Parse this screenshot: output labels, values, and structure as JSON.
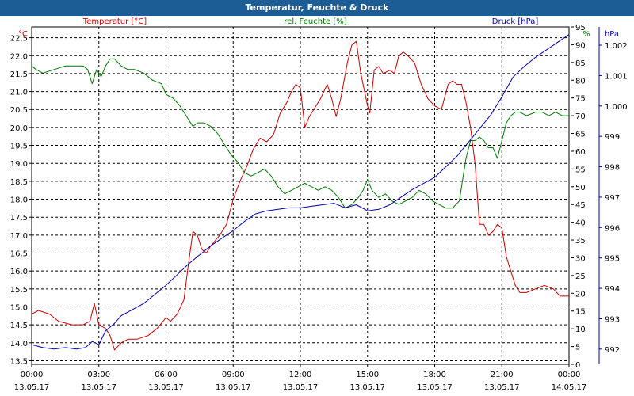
{
  "title": "Temperatur, Feuchte & Druck",
  "colors": {
    "temperature": "#cc0000",
    "humidity": "#007700",
    "pressure": "#0000aa",
    "title_bg": "#1d5d96",
    "axis": "#000000",
    "grid": "#000000"
  },
  "chart_data": {
    "type": "line",
    "title": "Temperatur, Feuchte & Druck",
    "grid": true,
    "x_ticks": [
      {
        "time": "00:00",
        "date": "13.05.17"
      },
      {
        "time": "03:00",
        "date": "13.05.17"
      },
      {
        "time": "06:00",
        "date": "13.05.17"
      },
      {
        "time": "09:00",
        "date": "13.05.17"
      },
      {
        "time": "12:00",
        "date": "13.05.17"
      },
      {
        "time": "15:00",
        "date": "13.05.17"
      },
      {
        "time": "18:00",
        "date": "13.05.17"
      },
      {
        "time": "21:00",
        "date": "13.05.17"
      },
      {
        "time": "00:00",
        "date": "14.05.17"
      }
    ],
    "x_range_hours": [
      0,
      24
    ],
    "axes": {
      "temperature": {
        "label": "Temperatur [°C]",
        "unit": "°C",
        "range": [
          13.4,
          22.8
        ],
        "ticks": [
          "13.5",
          "14.0",
          "14.5",
          "15.0",
          "15.5",
          "16.0",
          "16.5",
          "17.0",
          "17.5",
          "18.0",
          "18.5",
          "19.0",
          "19.5",
          "20.0",
          "20.5",
          "21.0",
          "21.5",
          "22.0",
          "22.5"
        ]
      },
      "humidity": {
        "label": "rel. Feuchte [%]",
        "unit": "%",
        "range": [
          0,
          95
        ],
        "ticks": [
          "0",
          "5",
          "10",
          "15",
          "20",
          "25",
          "30",
          "35",
          "40",
          "45",
          "50",
          "55",
          "60",
          "65",
          "70",
          "75",
          "80",
          "85",
          "90",
          "95"
        ]
      },
      "pressure": {
        "label": "Druck [hPa]",
        "unit": "hPa",
        "range": [
          991.5,
          1002.6
        ],
        "ticks": [
          "992",
          "993",
          "994",
          "995",
          "996",
          "997",
          "998",
          "999",
          "1.000",
          "1.001",
          "1.002"
        ]
      }
    },
    "series": [
      {
        "name": "Temperatur [°C]",
        "axis": "temperature",
        "color": "#cc0000",
        "points": [
          [
            0,
            14.8
          ],
          [
            0.3,
            14.9
          ],
          [
            0.8,
            14.8
          ],
          [
            1.2,
            14.6
          ],
          [
            1.8,
            14.5
          ],
          [
            2.3,
            14.5
          ],
          [
            2.6,
            14.6
          ],
          [
            2.8,
            15.1
          ],
          [
            3.0,
            14.5
          ],
          [
            3.3,
            14.4
          ],
          [
            3.5,
            14.2
          ],
          [
            3.7,
            13.8
          ],
          [
            4.0,
            14.0
          ],
          [
            4.3,
            14.1
          ],
          [
            4.7,
            14.1
          ],
          [
            5.2,
            14.2
          ],
          [
            5.6,
            14.4
          ],
          [
            6.0,
            14.7
          ],
          [
            6.2,
            14.6
          ],
          [
            6.5,
            14.8
          ],
          [
            6.8,
            15.2
          ],
          [
            7.0,
            16.2
          ],
          [
            7.2,
            17.1
          ],
          [
            7.4,
            17.0
          ],
          [
            7.6,
            16.6
          ],
          [
            7.8,
            16.5
          ],
          [
            8.0,
            16.7
          ],
          [
            8.4,
            17.0
          ],
          [
            8.7,
            17.3
          ],
          [
            9.0,
            18.0
          ],
          [
            9.3,
            18.5
          ],
          [
            9.6,
            18.9
          ],
          [
            9.9,
            19.4
          ],
          [
            10.2,
            19.7
          ],
          [
            10.5,
            19.6
          ],
          [
            10.8,
            19.8
          ],
          [
            11.1,
            20.4
          ],
          [
            11.4,
            20.7
          ],
          [
            11.6,
            21.0
          ],
          [
            11.8,
            21.2
          ],
          [
            12.0,
            21.1
          ],
          [
            12.2,
            20.0
          ],
          [
            12.4,
            20.3
          ],
          [
            12.6,
            20.5
          ],
          [
            12.9,
            20.8
          ],
          [
            13.2,
            21.2
          ],
          [
            13.4,
            20.8
          ],
          [
            13.6,
            20.3
          ],
          [
            13.8,
            20.8
          ],
          [
            14.1,
            21.8
          ],
          [
            14.3,
            22.3
          ],
          [
            14.5,
            22.4
          ],
          [
            14.7,
            21.5
          ],
          [
            15.0,
            20.6
          ],
          [
            15.1,
            20.4
          ],
          [
            15.3,
            21.6
          ],
          [
            15.5,
            21.7
          ],
          [
            15.7,
            21.5
          ],
          [
            16.0,
            21.6
          ],
          [
            16.2,
            21.5
          ],
          [
            16.4,
            22.0
          ],
          [
            16.6,
            22.1
          ],
          [
            16.8,
            22.0
          ],
          [
            17.1,
            21.8
          ],
          [
            17.4,
            21.2
          ],
          [
            17.7,
            20.8
          ],
          [
            18.0,
            20.6
          ],
          [
            18.3,
            20.5
          ],
          [
            18.6,
            21.2
          ],
          [
            18.8,
            21.3
          ],
          [
            19.0,
            21.2
          ],
          [
            19.2,
            21.2
          ],
          [
            19.4,
            20.7
          ],
          [
            19.6,
            20.0
          ],
          [
            19.8,
            19.0
          ],
          [
            20.0,
            17.3
          ],
          [
            20.2,
            17.3
          ],
          [
            20.4,
            17.0
          ],
          [
            20.6,
            17.1
          ],
          [
            20.8,
            17.3
          ],
          [
            21.0,
            17.2
          ],
          [
            21.2,
            16.4
          ],
          [
            21.4,
            16.0
          ],
          [
            21.6,
            15.6
          ],
          [
            21.8,
            15.4
          ],
          [
            22.1,
            15.4
          ],
          [
            22.5,
            15.5
          ],
          [
            22.9,
            15.6
          ],
          [
            23.3,
            15.5
          ],
          [
            23.6,
            15.3
          ],
          [
            24.0,
            15.3
          ]
        ]
      },
      {
        "name": "rel. Feuchte [%]",
        "axis": "humidity",
        "color": "#007700",
        "points": [
          [
            0,
            84
          ],
          [
            0.2,
            83
          ],
          [
            0.5,
            82
          ],
          [
            1.0,
            83
          ],
          [
            1.5,
            84
          ],
          [
            1.9,
            84
          ],
          [
            2.3,
            84
          ],
          [
            2.5,
            83
          ],
          [
            2.7,
            79
          ],
          [
            2.9,
            83
          ],
          [
            3.1,
            81
          ],
          [
            3.3,
            84
          ],
          [
            3.5,
            86
          ],
          [
            3.7,
            86
          ],
          [
            4.0,
            84
          ],
          [
            4.3,
            83
          ],
          [
            4.6,
            83
          ],
          [
            5.0,
            82
          ],
          [
            5.4,
            80
          ],
          [
            5.8,
            79
          ],
          [
            6.0,
            76
          ],
          [
            6.3,
            75
          ],
          [
            6.6,
            73
          ],
          [
            6.9,
            70
          ],
          [
            7.2,
            67
          ],
          [
            7.4,
            68
          ],
          [
            7.7,
            68
          ],
          [
            8.0,
            67
          ],
          [
            8.3,
            65
          ],
          [
            8.6,
            62
          ],
          [
            8.9,
            59
          ],
          [
            9.2,
            57
          ],
          [
            9.5,
            54
          ],
          [
            9.8,
            53
          ],
          [
            10.1,
            54
          ],
          [
            10.4,
            55
          ],
          [
            10.7,
            53
          ],
          [
            11.0,
            50
          ],
          [
            11.3,
            48
          ],
          [
            11.6,
            49
          ],
          [
            11.9,
            50
          ],
          [
            12.2,
            51
          ],
          [
            12.5,
            50
          ],
          [
            12.8,
            49
          ],
          [
            13.1,
            50
          ],
          [
            13.4,
            49
          ],
          [
            13.7,
            47
          ],
          [
            14.0,
            44
          ],
          [
            14.3,
            45
          ],
          [
            14.6,
            47
          ],
          [
            14.8,
            49
          ],
          [
            15.0,
            52
          ],
          [
            15.2,
            49
          ],
          [
            15.5,
            47
          ],
          [
            15.8,
            48
          ],
          [
            16.1,
            46
          ],
          [
            16.4,
            45
          ],
          [
            16.7,
            46
          ],
          [
            17.0,
            47
          ],
          [
            17.3,
            49
          ],
          [
            17.6,
            48
          ],
          [
            17.9,
            46
          ],
          [
            18.2,
            45
          ],
          [
            18.5,
            44
          ],
          [
            18.8,
            44
          ],
          [
            19.1,
            46
          ],
          [
            19.4,
            58
          ],
          [
            19.6,
            63
          ],
          [
            19.8,
            63
          ],
          [
            20.0,
            64
          ],
          [
            20.2,
            63
          ],
          [
            20.4,
            61
          ],
          [
            20.6,
            61
          ],
          [
            20.8,
            58
          ],
          [
            21.0,
            63
          ],
          [
            21.2,
            68
          ],
          [
            21.4,
            70
          ],
          [
            21.6,
            71
          ],
          [
            21.8,
            71
          ],
          [
            22.1,
            70
          ],
          [
            22.5,
            71
          ],
          [
            22.8,
            71
          ],
          [
            23.1,
            70
          ],
          [
            23.4,
            71
          ],
          [
            23.7,
            70
          ],
          [
            24.0,
            70
          ]
        ]
      },
      {
        "name": "Druck [hPa]",
        "axis": "pressure",
        "color": "#0000aa",
        "points": [
          [
            0,
            992.15
          ],
          [
            0.5,
            992.05
          ],
          [
            1.0,
            992.0
          ],
          [
            1.5,
            992.05
          ],
          [
            2.0,
            992.0
          ],
          [
            2.4,
            992.05
          ],
          [
            2.7,
            992.25
          ],
          [
            3.0,
            992.15
          ],
          [
            3.3,
            992.6
          ],
          [
            3.7,
            992.85
          ],
          [
            4.0,
            993.1
          ],
          [
            4.5,
            993.3
          ],
          [
            5.0,
            993.5
          ],
          [
            5.5,
            993.8
          ],
          [
            6.0,
            994.1
          ],
          [
            6.5,
            994.45
          ],
          [
            7.0,
            994.8
          ],
          [
            7.5,
            995.1
          ],
          [
            8.0,
            995.4
          ],
          [
            8.5,
            995.65
          ],
          [
            9.0,
            995.9
          ],
          [
            9.5,
            996.2
          ],
          [
            10.0,
            996.45
          ],
          [
            10.5,
            996.55
          ],
          [
            11.0,
            996.6
          ],
          [
            11.5,
            996.65
          ],
          [
            12.0,
            996.65
          ],
          [
            12.5,
            996.7
          ],
          [
            13.0,
            996.75
          ],
          [
            13.5,
            996.8
          ],
          [
            14.0,
            996.65
          ],
          [
            14.5,
            996.75
          ],
          [
            15.0,
            996.55
          ],
          [
            15.5,
            996.6
          ],
          [
            16.0,
            996.75
          ],
          [
            16.5,
            997.0
          ],
          [
            17.0,
            997.25
          ],
          [
            17.5,
            997.45
          ],
          [
            18.0,
            997.65
          ],
          [
            18.5,
            998.0
          ],
          [
            19.0,
            998.35
          ],
          [
            19.5,
            998.8
          ],
          [
            20.0,
            999.25
          ],
          [
            20.5,
            999.7
          ],
          [
            21.0,
            1000.3
          ],
          [
            21.5,
            1000.95
          ],
          [
            22.0,
            1001.3
          ],
          [
            22.5,
            1001.6
          ],
          [
            23.0,
            1001.85
          ],
          [
            23.5,
            1002.1
          ],
          [
            24.0,
            1002.35
          ]
        ]
      }
    ]
  }
}
